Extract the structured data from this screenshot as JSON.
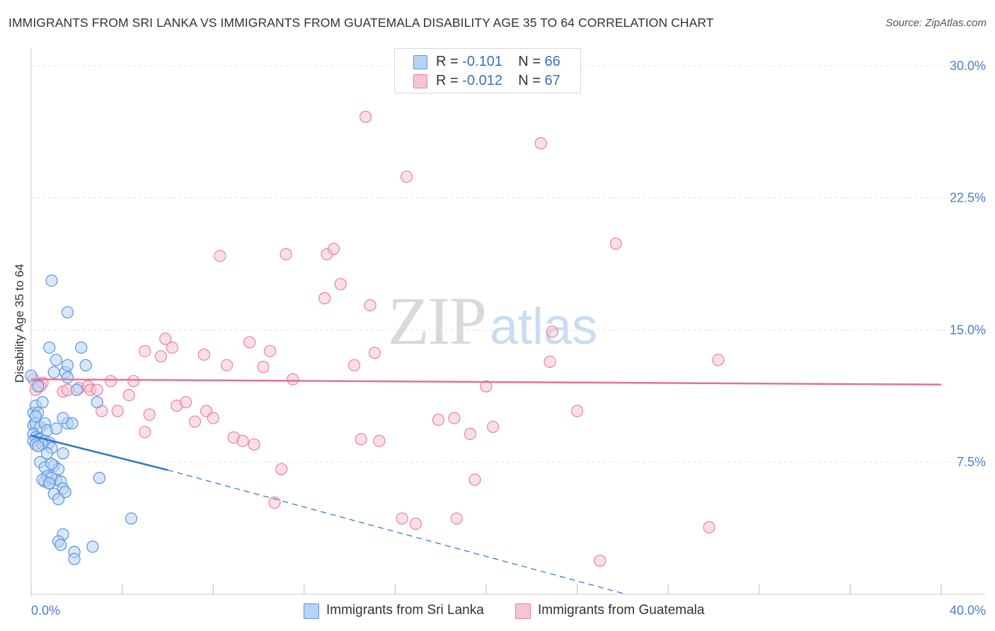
{
  "title": "IMMIGRANTS FROM SRI LANKA VS IMMIGRANTS FROM GUATEMALA DISABILITY AGE 35 TO 64 CORRELATION CHART",
  "source": "Source: ZipAtlas.com",
  "watermark": {
    "zip": "ZIP",
    "atlas": "atlas"
  },
  "legend": {
    "rows": [
      {
        "r_label": "R =",
        "r_value": "-0.101",
        "n_label": "N =",
        "n_value": "66"
      },
      {
        "r_label": "R =",
        "r_value": "-0.012",
        "n_label": "N =",
        "n_value": "67"
      }
    ]
  },
  "colors": {
    "blue_fill": "#b8d3f3",
    "blue_stroke": "#5b93dc",
    "blue_line": "#2f70d0",
    "pink_fill": "#f7c4d5",
    "pink_stroke": "#e8829f",
    "pink_line": "#e3709a",
    "grid": "#e3e3e3",
    "axis_text": "#4a7fd0"
  },
  "chart_data": {
    "type": "scatter",
    "title": "IMMIGRANTS FROM SRI LANKA VS IMMIGRANTS FROM GUATEMALA DISABILITY AGE 35 TO 64 CORRELATION CHART",
    "xlabel": "",
    "ylabel": "Disability Age 35 to 64",
    "xlim": [
      0,
      40
    ],
    "ylim": [
      0,
      31
    ],
    "x_tick_labels": [
      "0.0%",
      "40.0%"
    ],
    "y_ticks": [
      7.5,
      15.0,
      22.5,
      30.0
    ],
    "y_tick_labels": [
      "7.5%",
      "15.0%",
      "22.5%",
      "30.0%"
    ],
    "grid": true,
    "legend_position": "top-center",
    "series": [
      {
        "name": "Immigrants from Sri Lanka",
        "color": "blue",
        "points": [
          [
            0.0,
            12.4
          ],
          [
            0.3,
            11.8
          ],
          [
            0.1,
            10.3
          ],
          [
            0.2,
            10.7
          ],
          [
            0.5,
            10.9
          ],
          [
            0.3,
            10.3
          ],
          [
            0.1,
            9.6
          ],
          [
            0.2,
            9.7
          ],
          [
            0.4,
            9.5
          ],
          [
            0.6,
            9.7
          ],
          [
            0.7,
            9.3
          ],
          [
            0.1,
            9.1
          ],
          [
            0.2,
            8.9
          ],
          [
            0.3,
            8.8
          ],
          [
            0.4,
            8.8
          ],
          [
            0.6,
            8.7
          ],
          [
            0.8,
            8.6
          ],
          [
            0.1,
            8.7
          ],
          [
            0.2,
            8.5
          ],
          [
            0.5,
            8.5
          ],
          [
            0.3,
            8.4
          ],
          [
            0.9,
            8.3
          ],
          [
            0.7,
            8.0
          ],
          [
            1.4,
            8.0
          ],
          [
            0.4,
            7.5
          ],
          [
            0.6,
            7.2
          ],
          [
            1.0,
            7.3
          ],
          [
            1.2,
            7.1
          ],
          [
            0.9,
            7.4
          ],
          [
            0.7,
            6.7
          ],
          [
            0.6,
            6.4
          ],
          [
            0.5,
            6.5
          ],
          [
            0.8,
            6.3
          ],
          [
            1.1,
            6.5
          ],
          [
            0.9,
            6.6
          ],
          [
            1.3,
            6.4
          ],
          [
            1.4,
            6.0
          ],
          [
            1.0,
            5.7
          ],
          [
            1.5,
            5.8
          ],
          [
            1.2,
            5.4
          ],
          [
            0.8,
            6.3
          ],
          [
            1.0,
            12.6
          ],
          [
            1.5,
            12.6
          ],
          [
            1.6,
            12.3
          ],
          [
            1.1,
            13.3
          ],
          [
            1.6,
            13.0
          ],
          [
            0.8,
            14.0
          ],
          [
            2.2,
            14.0
          ],
          [
            1.6,
            9.7
          ],
          [
            1.8,
            9.7
          ],
          [
            2.9,
            10.9
          ],
          [
            2.0,
            11.6
          ],
          [
            3.0,
            6.6
          ],
          [
            1.6,
            16.0
          ],
          [
            0.9,
            17.8
          ],
          [
            4.4,
            4.3
          ],
          [
            1.4,
            3.4
          ],
          [
            1.2,
            3.0
          ],
          [
            1.3,
            2.8
          ],
          [
            2.7,
            2.7
          ],
          [
            1.9,
            2.4
          ],
          [
            1.9,
            2.0
          ],
          [
            2.4,
            13.0
          ],
          [
            0.2,
            10.1
          ],
          [
            1.1,
            9.4
          ],
          [
            1.4,
            10.0
          ]
        ],
        "trend": {
          "x": [
            0.0,
            6.0
          ],
          "y": [
            9.0,
            7.05
          ],
          "dashed_to": [
            26.0,
            0.05
          ]
        }
      },
      {
        "name": "Immigrants from Guatemala",
        "color": "pink",
        "points": [
          [
            0.1,
            12.2
          ],
          [
            0.2,
            11.6
          ],
          [
            0.5,
            12.0
          ],
          [
            0.4,
            11.8
          ],
          [
            1.4,
            11.5
          ],
          [
            1.6,
            11.6
          ],
          [
            2.1,
            11.7
          ],
          [
            2.5,
            11.8
          ],
          [
            2.6,
            11.6
          ],
          [
            2.9,
            11.6
          ],
          [
            3.5,
            12.1
          ],
          [
            4.5,
            12.1
          ],
          [
            4.3,
            11.3
          ],
          [
            3.1,
            10.4
          ],
          [
            3.8,
            10.4
          ],
          [
            5.2,
            10.2
          ],
          [
            5.0,
            9.2
          ],
          [
            6.4,
            10.7
          ],
          [
            6.8,
            10.9
          ],
          [
            7.2,
            9.8
          ],
          [
            7.7,
            10.4
          ],
          [
            8.0,
            10.0
          ],
          [
            5.0,
            13.8
          ],
          [
            5.7,
            13.5
          ],
          [
            5.9,
            14.5
          ],
          [
            6.2,
            14.0
          ],
          [
            7.6,
            13.6
          ],
          [
            8.6,
            13.0
          ],
          [
            9.6,
            14.3
          ],
          [
            10.2,
            12.9
          ],
          [
            10.5,
            13.8
          ],
          [
            11.5,
            12.2
          ],
          [
            8.9,
            8.9
          ],
          [
            9.3,
            8.7
          ],
          [
            9.8,
            8.5
          ],
          [
            11.0,
            7.1
          ],
          [
            10.7,
            5.2
          ],
          [
            8.3,
            19.2
          ],
          [
            11.2,
            19.3
          ],
          [
            12.9,
            16.8
          ],
          [
            13.0,
            19.3
          ],
          [
            13.3,
            19.6
          ],
          [
            13.6,
            17.6
          ],
          [
            14.2,
            13.0
          ],
          [
            14.5,
            8.8
          ],
          [
            14.9,
            16.4
          ],
          [
            15.1,
            13.7
          ],
          [
            15.3,
            8.7
          ],
          [
            14.7,
            27.1
          ],
          [
            16.5,
            23.7
          ],
          [
            16.3,
            4.3
          ],
          [
            16.9,
            4.0
          ],
          [
            17.9,
            9.9
          ],
          [
            18.6,
            10.0
          ],
          [
            18.7,
            4.3
          ],
          [
            19.3,
            9.1
          ],
          [
            19.5,
            6.5
          ],
          [
            20.0,
            11.8
          ],
          [
            20.3,
            9.5
          ],
          [
            22.4,
            25.6
          ],
          [
            22.8,
            13.2
          ],
          [
            22.9,
            14.9
          ],
          [
            24.0,
            10.4
          ],
          [
            25.0,
            1.9
          ],
          [
            25.7,
            19.9
          ],
          [
            29.8,
            3.8
          ],
          [
            30.2,
            13.3
          ]
        ],
        "trend": {
          "x": [
            0.0,
            40.0
          ],
          "y": [
            12.2,
            11.9
          ]
        }
      }
    ]
  }
}
